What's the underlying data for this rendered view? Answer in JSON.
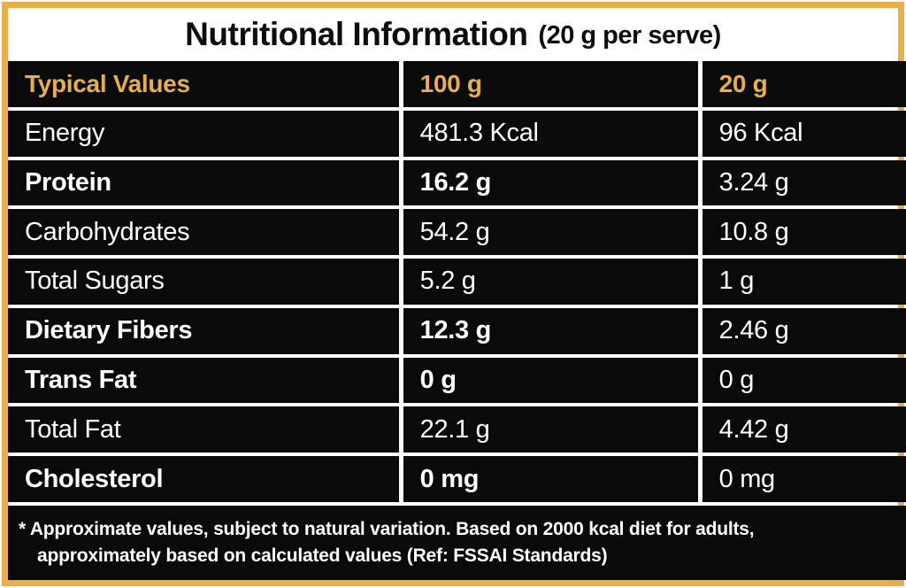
{
  "title": {
    "main": "Nutritional Information",
    "suffix": "(20 g per serve)"
  },
  "table": {
    "headers": {
      "label": "Typical Values",
      "per100": "100 g",
      "per20": "20 g"
    },
    "rows": [
      {
        "label": "Energy",
        "per100": "481.3 Kcal",
        "per20": "96 Kcal",
        "bold": false
      },
      {
        "label": "Protein",
        "per100": "16.2 g",
        "per20": "3.24 g",
        "bold": true
      },
      {
        "label": "Carbohydrates",
        "per100": "54.2 g",
        "per20": "10.8 g",
        "bold": false
      },
      {
        "label": "Total Sugars",
        "per100": "5.2 g",
        "per20": "1 g",
        "bold": false
      },
      {
        "label": "Dietary Fibers",
        "per100": "12.3 g",
        "per20": "2.46 g",
        "bold": true
      },
      {
        "label": "Trans Fat",
        "per100": "0 g",
        "per20": "0 g",
        "bold": true
      },
      {
        "label": "Total Fat",
        "per100": "22.1 g",
        "per20": "4.42 g",
        "bold": false
      },
      {
        "label": "Cholesterol",
        "per100": "0 mg",
        "per20": "0 mg",
        "bold": true
      }
    ]
  },
  "footnote": {
    "line1": "* Approximate values, subject to natural variation. Based on 2000 kcal diet for adults,",
    "line2": "approximately based on calculated values (Ref: FSSAI Standards)"
  },
  "colors": {
    "accent_gold": "#E9AE4B",
    "cell_black": "#0A0A0A",
    "text_white": "#FFFFFF",
    "title_black": "#0D0D0D"
  }
}
